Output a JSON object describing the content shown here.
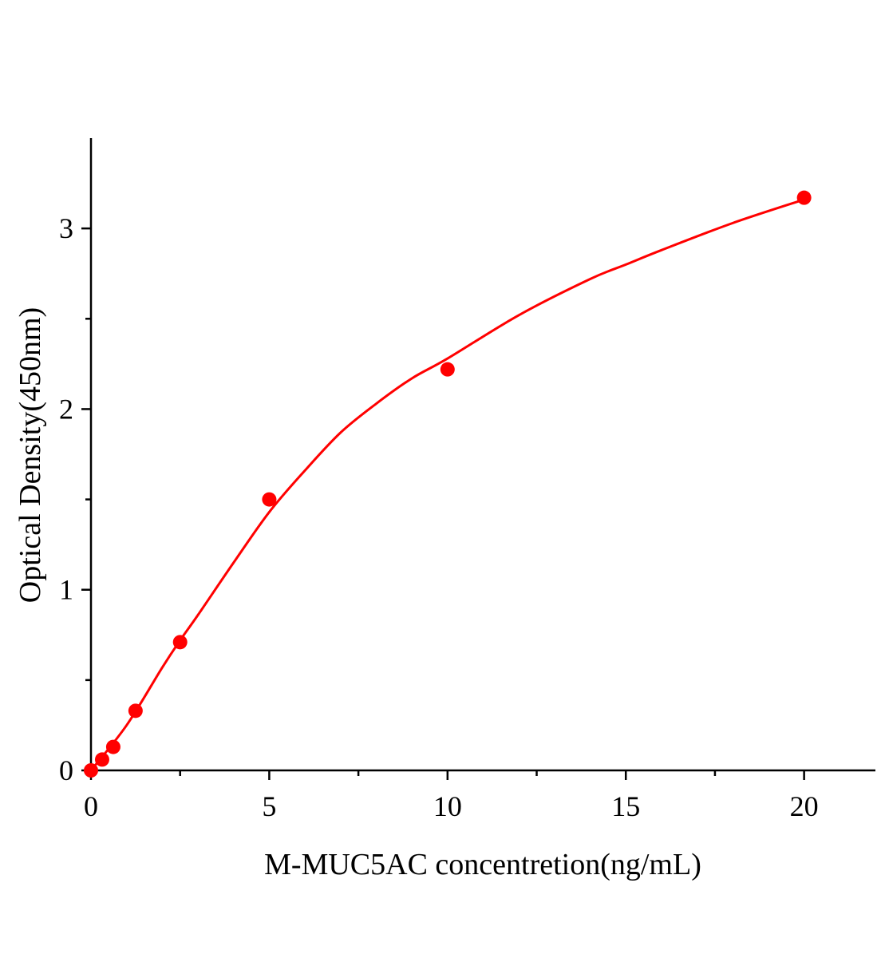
{
  "chart_data": {
    "type": "scatter",
    "title": "",
    "xlabel": "M-MUC5AC concentretion(ng/mL)",
    "ylabel": "Optical Density(450nm)",
    "xlim": [
      0,
      22
    ],
    "ylim": [
      0,
      3.5
    ],
    "xticks": [
      0,
      5,
      10,
      15,
      20
    ],
    "yticks": [
      0,
      1,
      2,
      3
    ],
    "xtick_labels": [
      "0",
      "5",
      "10",
      "15",
      "20"
    ],
    "ytick_labels": [
      "0",
      "1",
      "2",
      "3"
    ],
    "x_minor_ticks": [
      2.5,
      7.5,
      12.5,
      17.5
    ],
    "y_minor_ticks": [
      0.5,
      1.5,
      2.5
    ],
    "grid": false,
    "color": "#ff0000",
    "points": {
      "x": [
        0,
        0.3125,
        0.625,
        1.25,
        2.5,
        5,
        10,
        20
      ],
      "y": [
        0,
        0.06,
        0.13,
        0.33,
        0.71,
        1.5,
        2.22,
        3.17
      ]
    },
    "fit_curve": {
      "x": [
        0,
        1,
        2,
        2.5,
        3,
        4,
        5,
        6,
        7,
        8,
        9,
        10,
        12,
        14,
        15,
        16,
        18,
        20
      ],
      "y": [
        0,
        0.25,
        0.57,
        0.72,
        0.86,
        1.15,
        1.43,
        1.66,
        1.87,
        2.03,
        2.17,
        2.28,
        2.52,
        2.72,
        2.8,
        2.88,
        3.03,
        3.16
      ]
    }
  }
}
